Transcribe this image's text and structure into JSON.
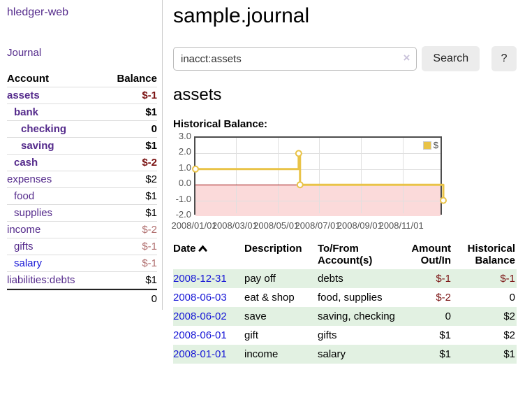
{
  "app": {
    "brand": "hledger-web",
    "nav_journal": "Journal"
  },
  "sidebar": {
    "accounts_header": {
      "account": "Account",
      "balance": "Balance"
    },
    "accounts": [
      {
        "name": "assets",
        "balance": "$-1",
        "level": 1,
        "emph": true,
        "link": "purple",
        "balance_style": "neg-strong"
      },
      {
        "name": "bank",
        "balance": "$1",
        "level": 2,
        "emph": true,
        "link": "purple",
        "balance_style": "pos"
      },
      {
        "name": "checking",
        "balance": "0",
        "level": 3,
        "emph": true,
        "link": "purple",
        "balance_style": "pos"
      },
      {
        "name": "saving",
        "balance": "$1",
        "level": 3,
        "emph": true,
        "link": "purple",
        "balance_style": "pos"
      },
      {
        "name": "cash",
        "balance": "$-2",
        "level": 2,
        "emph": true,
        "link": "purple",
        "balance_style": "neg-strong"
      },
      {
        "name": "expenses",
        "balance": "$2",
        "level": 1,
        "emph": false,
        "link": "purple",
        "balance_style": "pos"
      },
      {
        "name": "food",
        "balance": "$1",
        "level": 2,
        "emph": false,
        "link": "purple",
        "balance_style": "pos"
      },
      {
        "name": "supplies",
        "balance": "$1",
        "level": 2,
        "emph": false,
        "link": "purple",
        "balance_style": "pos"
      },
      {
        "name": "income",
        "balance": "$-2",
        "level": 1,
        "emph": false,
        "link": "purple",
        "balance_style": "neg-muted"
      },
      {
        "name": "gifts",
        "balance": "$-1",
        "level": 2,
        "emph": false,
        "link": "purple",
        "balance_style": "neg-muted"
      },
      {
        "name": "salary",
        "balance": "$-1",
        "level": 2,
        "emph": false,
        "link": "blue",
        "balance_style": "neg-muted"
      },
      {
        "name": "liabilities:debts",
        "balance": "$1",
        "level": 1,
        "emph": false,
        "link": "purple",
        "balance_style": "pos"
      }
    ],
    "total": "0"
  },
  "header": {
    "title": "sample.journal"
  },
  "search": {
    "value": "inacct:assets",
    "clear_icon": "×",
    "button": "Search",
    "help_button": "?"
  },
  "account_page": {
    "title": "assets",
    "chart_label": "Historical Balance:"
  },
  "chart_data": {
    "type": "line",
    "title": "Historical Balance:",
    "series": [
      {
        "name": "$",
        "color": "#e9c347",
        "step": true,
        "points": [
          [
            "2008-01-01",
            1
          ],
          [
            "2008-06-01",
            2
          ],
          [
            "2008-06-03",
            0
          ],
          [
            "2008-12-31",
            -1
          ]
        ]
      }
    ],
    "x_ticks": [
      "2008/01/01",
      "2008/03/01",
      "2008/05/01",
      "2008/07/01",
      "2008/09/01",
      "2008/11/01"
    ],
    "y_ticks": [
      3.0,
      2.0,
      1.0,
      0.0,
      -1.0,
      -2.0
    ],
    "xlim": [
      "2008-01-01",
      "2008-12-31"
    ],
    "ylim": [
      -2,
      3
    ],
    "grid": true,
    "legend": {
      "label": "$",
      "position": "top-right"
    },
    "negative_region_color": "#fbdada",
    "zero_line_color": "#990000"
  },
  "register_table": {
    "headers": {
      "date": "Date",
      "description": "Description",
      "tofrom": "To/From Account(s)",
      "amount": "Amount Out/In",
      "balance": "Historical Balance"
    },
    "rows": [
      {
        "date": "2008-12-31",
        "description": "pay off",
        "accounts": "debts",
        "amount": "$-1",
        "balance": "$-1"
      },
      {
        "date": "2008-06-03",
        "description": "eat & shop",
        "accounts": "food, supplies",
        "amount": "$-2",
        "balance": "0"
      },
      {
        "date": "2008-06-02",
        "description": "save",
        "accounts": "saving, checking",
        "amount": "0",
        "balance": "$2"
      },
      {
        "date": "2008-06-01",
        "description": "gift",
        "accounts": "gifts",
        "amount": "$1",
        "balance": "$2"
      },
      {
        "date": "2008-01-01",
        "description": "income",
        "accounts": "salary",
        "amount": "$1",
        "balance": "$1"
      }
    ]
  },
  "colors": {
    "link_purple": "#552b8c",
    "link_blue": "#1717d6",
    "negative_strong": "#7a1212",
    "negative_muted": "#b06e6e",
    "row_stripe_green": "#e2f1e2",
    "series_gold": "#e9c347",
    "negative_region_pink": "#fbdada",
    "zero_line_red": "#990000"
  }
}
